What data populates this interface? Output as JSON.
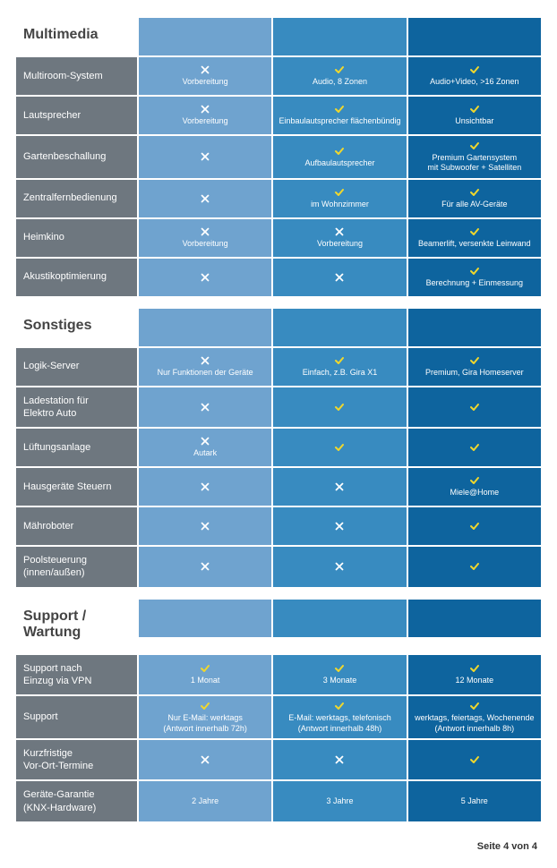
{
  "colors": {
    "label_bg": "#6e777f",
    "col1": "#6fa3cf",
    "col2": "#388bc0",
    "col3": "#0e649e",
    "check": "#f0d72c",
    "cross": "#ffffff",
    "text": "#ffffff",
    "section_title": "#444444"
  },
  "footer": "Seite 4 von 4",
  "sections": [
    {
      "title": "Multimedia",
      "rows": [
        {
          "label": "Multiroom-System",
          "cells": [
            {
              "icon": "x",
              "text": "Vorbereitung"
            },
            {
              "icon": "v",
              "text": "Audio, 8 Zonen"
            },
            {
              "icon": "v",
              "text": "Audio+Video, >16 Zonen"
            }
          ]
        },
        {
          "label": "Lautsprecher",
          "cells": [
            {
              "icon": "x",
              "text": "Vorbereitung"
            },
            {
              "icon": "v",
              "text": "Einbaulautsprecher flächenbündig"
            },
            {
              "icon": "v",
              "text": "Unsichtbar"
            }
          ]
        },
        {
          "label": "Gartenbeschallung",
          "cells": [
            {
              "icon": "x",
              "text": ""
            },
            {
              "icon": "v",
              "text": "Aufbaulautsprecher"
            },
            {
              "icon": "v",
              "text": "Premium Gartensystem\nmit Subwoofer + Satelliten"
            }
          ]
        },
        {
          "label": "Zentralfernbedienung",
          "cells": [
            {
              "icon": "x",
              "text": ""
            },
            {
              "icon": "v",
              "text": "im Wohnzimmer"
            },
            {
              "icon": "v",
              "text": "Für alle AV-Geräte"
            }
          ]
        },
        {
          "label": "Heimkino",
          "cells": [
            {
              "icon": "x",
              "text": "Vorbereitung"
            },
            {
              "icon": "x",
              "text": "Vorbereitung"
            },
            {
              "icon": "v",
              "text": "Beamerlift, versenkte Leinwand"
            }
          ]
        },
        {
          "label": "Akustikoptimierung",
          "cells": [
            {
              "icon": "x",
              "text": ""
            },
            {
              "icon": "x",
              "text": ""
            },
            {
              "icon": "v",
              "text": "Berechnung + Einmessung"
            }
          ]
        }
      ]
    },
    {
      "title": "Sonstiges",
      "rows": [
        {
          "label": "Logik-Server",
          "cells": [
            {
              "icon": "x",
              "text": "Nur Funktionen der Geräte"
            },
            {
              "icon": "v",
              "text": "Einfach, z.B. Gira X1"
            },
            {
              "icon": "v",
              "text": "Premium, Gira Homeserver"
            }
          ]
        },
        {
          "label": "Ladestation für\nElektro Auto",
          "cells": [
            {
              "icon": "x",
              "text": ""
            },
            {
              "icon": "v",
              "text": ""
            },
            {
              "icon": "v",
              "text": ""
            }
          ]
        },
        {
          "label": "Lüftungsanlage",
          "cells": [
            {
              "icon": "x",
              "text": "Autark"
            },
            {
              "icon": "v",
              "text": ""
            },
            {
              "icon": "v",
              "text": ""
            }
          ]
        },
        {
          "label": "Hausgeräte Steuern",
          "cells": [
            {
              "icon": "x",
              "text": ""
            },
            {
              "icon": "x",
              "text": ""
            },
            {
              "icon": "v",
              "text": "Miele@Home"
            }
          ]
        },
        {
          "label": "Mähroboter",
          "cells": [
            {
              "icon": "x",
              "text": ""
            },
            {
              "icon": "x",
              "text": ""
            },
            {
              "icon": "v",
              "text": ""
            }
          ]
        },
        {
          "label": "Poolsteuerung\n(innen/außen)",
          "cells": [
            {
              "icon": "x",
              "text": ""
            },
            {
              "icon": "x",
              "text": ""
            },
            {
              "icon": "v",
              "text": ""
            }
          ]
        }
      ]
    },
    {
      "title": "Support /\nWartung",
      "rows": [
        {
          "label": "Support nach\nEinzug via VPN",
          "cells": [
            {
              "icon": "v",
              "text": "1 Monat"
            },
            {
              "icon": "v",
              "text": "3 Monate"
            },
            {
              "icon": "v",
              "text": "12 Monate"
            }
          ]
        },
        {
          "label": "Support",
          "cells": [
            {
              "icon": "v",
              "text": "Nur E-Mail: werktags\n(Antwort innerhalb 72h)"
            },
            {
              "icon": "v",
              "text": "E-Mail: werktags, telefonisch\n(Antwort innerhalb 48h)"
            },
            {
              "icon": "v",
              "text": "werktags, feiertags, Wochenende\n(Antwort innerhalb 8h)"
            }
          ]
        },
        {
          "label": "Kurzfristige\nVor-Ort-Termine",
          "cells": [
            {
              "icon": "x",
              "text": ""
            },
            {
              "icon": "x",
              "text": ""
            },
            {
              "icon": "v",
              "text": ""
            }
          ]
        },
        {
          "label": "Geräte-Garantie\n(KNX-Hardware)",
          "cells": [
            {
              "icon": "",
              "text": "2 Jahre"
            },
            {
              "icon": "",
              "text": "3 Jahre"
            },
            {
              "icon": "",
              "text": "5 Jahre"
            }
          ]
        }
      ]
    }
  ]
}
